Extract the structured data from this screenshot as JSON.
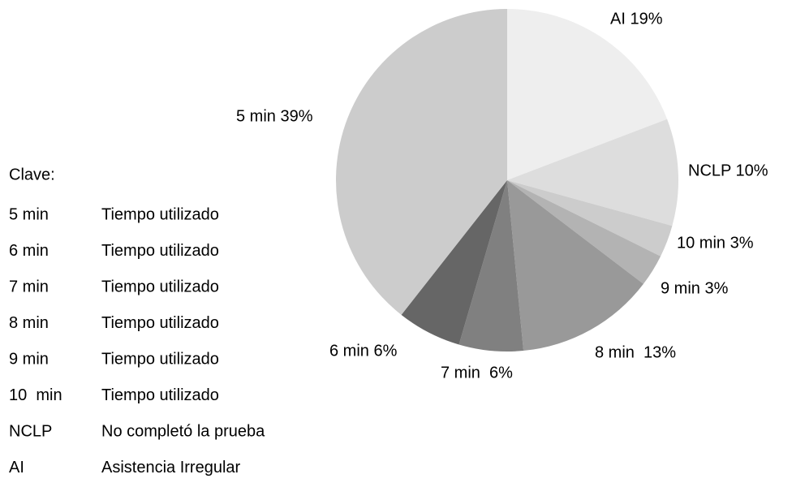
{
  "chart_data": {
    "type": "pie",
    "categories": [
      "AI",
      "NCLP",
      "10 min",
      "9 min",
      "8 min",
      "7 min",
      "6 min",
      "5 min"
    ],
    "values": [
      19,
      10,
      3,
      3,
      13,
      6,
      6,
      39
    ],
    "value_labels": [
      "AI 19%",
      "NCLP 10%",
      "10 min 3%",
      "9 min 3%",
      "8 min  13%",
      "7 min  6%",
      "6 min 6%",
      "5 min 39%"
    ],
    "colors": [
      "#eeeeee",
      "#dddddd",
      "#cccccc",
      "#b3b3b3",
      "#999999",
      "#808080",
      "#666666",
      "#cccccc"
    ]
  },
  "key": {
    "title": "Clave:",
    "rows": [
      [
        "5 min",
        "Tiempo utilizado"
      ],
      [
        "6 min",
        "Tiempo utilizado"
      ],
      [
        "7 min",
        "Tiempo utilizado"
      ],
      [
        "8 min",
        "Tiempo utilizado"
      ],
      [
        "9 min",
        "Tiempo utilizado"
      ],
      [
        "10  min",
        "Tiempo utilizado"
      ],
      [
        "NCLP",
        "No completó la prueba"
      ],
      [
        "AI",
        "Asistencia Irregular"
      ]
    ]
  }
}
